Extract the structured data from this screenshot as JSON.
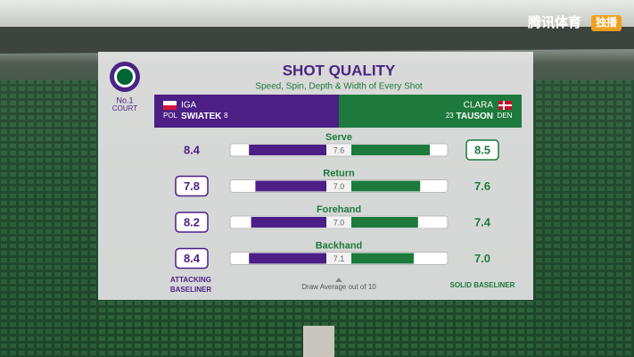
{
  "broadcaster": {
    "name": "腾讯体育",
    "badge": "独播"
  },
  "court": {
    "line1": "No.1",
    "line2": "COURT"
  },
  "title": "SHOT QUALITY",
  "subtitle": "Speed, Spin, Depth & Width of Every Shot",
  "players": [
    {
      "first": "IGA",
      "last": "SWIATEK",
      "seed": "8",
      "country": "POL"
    },
    {
      "first": "CLARA",
      "last": "TAUSON",
      "seed": "23",
      "country": "DEN"
    }
  ],
  "scale": {
    "xlim": [
      0,
      10
    ]
  },
  "rows": [
    {
      "label": "Serve",
      "left": 8.4,
      "right": 8.5,
      "average": 7.6
    },
    {
      "label": "Return",
      "left": 7.8,
      "right": 7.6,
      "average": {
        "value": 7,
        "label": "7.0"
      }
    },
    {
      "label": "Forehand",
      "left": 8.2,
      "right": 7.4,
      "average": {
        "value": 7,
        "label": "7.0"
      }
    },
    {
      "label": "Backhand",
      "left": 8.4,
      "right": {
        "value": 7,
        "label": "7.0"
      },
      "average": 7.1
    }
  ],
  "footer": {
    "left_style": "ATTACKING BASELINER",
    "note": "Draw Average out of 10",
    "right_style": "SOLID BASELINER"
  }
}
